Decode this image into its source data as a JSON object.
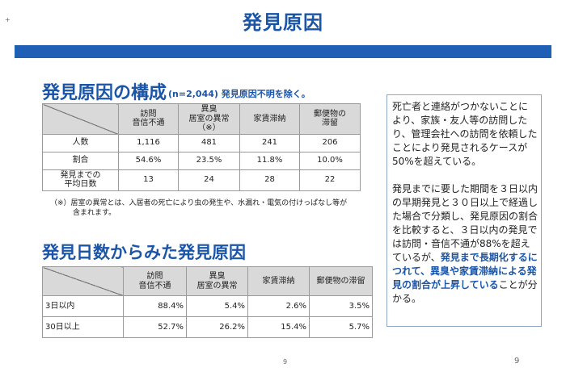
{
  "page": {
    "title": "発見原因",
    "corner_mark": "+",
    "page_number_center": "9",
    "page_number_right": "9"
  },
  "section1": {
    "heading": "発見原因の構成",
    "subtitle": "(n=2,044) 発見原因不明を除く。",
    "table": {
      "columns": [
        [
          "訪問",
          "音信不通"
        ],
        [
          "異臭",
          "居室の異常（※）"
        ],
        [
          "家賃滞納"
        ],
        [
          "郵便物の",
          "滞留"
        ]
      ],
      "rows": [
        {
          "label": [
            "人数"
          ],
          "values": [
            "1,116",
            "481",
            "241",
            "206"
          ]
        },
        {
          "label": [
            "割合"
          ],
          "values": [
            "54.6%",
            "23.5%",
            "11.8%",
            "10.0%"
          ]
        },
        {
          "label": [
            "発見までの",
            "平均日数"
          ],
          "values": [
            "13",
            "24",
            "28",
            "22"
          ]
        }
      ]
    },
    "footnote": {
      "line1": "（※）居室の異常とは、入居者の死亡により虫の発生や、水漏れ・電気の付けっぱなし等が",
      "line2": "含まれます。"
    }
  },
  "section2": {
    "heading": "発見日数からみた発見原因",
    "table": {
      "columns": [
        [
          "訪問",
          "音信不通"
        ],
        [
          "異臭",
          "居室の異常"
        ],
        [
          "家賃滞納"
        ],
        [
          "郵便物の滞留"
        ]
      ],
      "rows": [
        {
          "label": "3日以内",
          "values": [
            "88.4%",
            "5.4%",
            "2.6%",
            "3.5%"
          ]
        },
        {
          "label": "30日以上",
          "values": [
            "52.7%",
            "26.2%",
            "15.4%",
            "5.7%"
          ]
        }
      ]
    }
  },
  "sidebar": {
    "paragraph1": "死亡者と連絡がつかないことにより、家族・友人等の訪問したり、管理会社への訪問を依頼したことにより発見されるケースが50%を超えている。",
    "paragraph2_plain": "発見までに要した期間を３日以内の早期発見と３０日以上で経過した場合で分類し、発見原因の割合を比較すると、３日以内の発見では訪問・音信不通が88%を超えているが、",
    "paragraph2_highlight": "発見まで長期化するにつれて、異臭や家賃滞納による発見の割合が上昇している",
    "paragraph2_end": "ことが分かる。"
  }
}
